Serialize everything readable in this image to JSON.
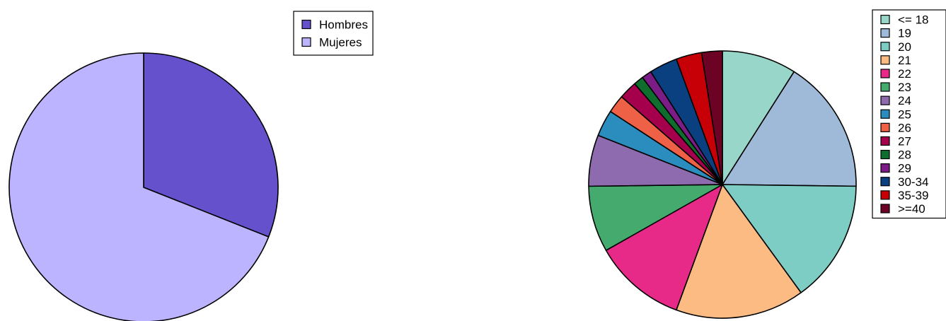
{
  "chart_data": [
    {
      "type": "pie",
      "title": "",
      "legend_position": "top-right",
      "start": "top",
      "direction": "clockwise",
      "slices": [
        {
          "label": "Hombres",
          "value": 31,
          "color": "#6651CD"
        },
        {
          "label": "Mujeres",
          "value": 69,
          "color": "#BCB4FF"
        }
      ]
    },
    {
      "type": "pie",
      "title": "",
      "legend_position": "top-right",
      "start": "top",
      "direction": "clockwise",
      "slices": [
        {
          "label": "<= 18",
          "value": 9.0,
          "color": "#97D6C8"
        },
        {
          "label": "19",
          "value": 16.2,
          "color": "#9FBAD8"
        },
        {
          "label": "20",
          "value": 14.8,
          "color": "#7DCDC4"
        },
        {
          "label": "21",
          "value": 15.6,
          "color": "#FBBB83"
        },
        {
          "label": "22",
          "value": 11.2,
          "color": "#E72A88"
        },
        {
          "label": "23",
          "value": 8.0,
          "color": "#45AA6E"
        },
        {
          "label": "24",
          "value": 6.2,
          "color": "#8D6BAE"
        },
        {
          "label": "25",
          "value": 3.2,
          "color": "#2B8CBE"
        },
        {
          "label": "26",
          "value": 2.2,
          "color": "#EE6146"
        },
        {
          "label": "27",
          "value": 2.2,
          "color": "#A5004C"
        },
        {
          "label": "28",
          "value": 1.2,
          "color": "#0F6E2E"
        },
        {
          "label": "29",
          "value": 1.2,
          "color": "#7B1C87"
        },
        {
          "label": "30-34",
          "value": 3.4,
          "color": "#0A3F80"
        },
        {
          "label": "35-39",
          "value": 3.1,
          "color": "#C70008"
        },
        {
          "label": ">=40",
          "value": 2.5,
          "color": "#6C0324"
        }
      ]
    }
  ]
}
